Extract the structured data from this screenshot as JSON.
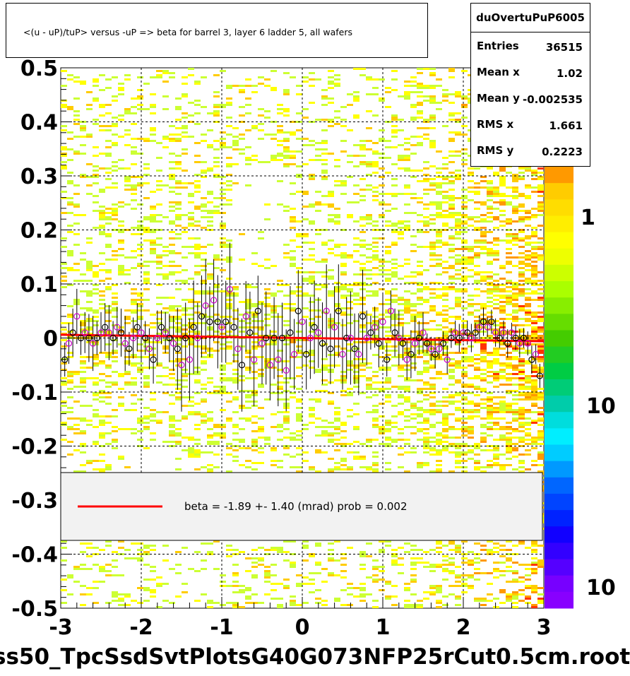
{
  "title": "<(u - uP)/tuP> versus  -uP => beta for barrel 3, layer 6 ladder 5, all wafers",
  "stats": {
    "name": "duOvertuPuP6005",
    "rows": [
      {
        "key": "Entries",
        "value": "36515"
      },
      {
        "key": "Mean x",
        "value": "1.02"
      },
      {
        "key": "Mean y",
        "value": "-0.002535"
      },
      {
        "key": "RMS x",
        "value": "1.661"
      },
      {
        "key": "RMS y",
        "value": "0.2223"
      }
    ]
  },
  "legend": {
    "text": "beta =   -1.89 +-  1.40 (mrad) prob = 0.002",
    "line_color": "#ff0000"
  },
  "footer": "ss50_TpcSsdSvtPlotsG40G073NFP25rCut0.5cm.root",
  "colors": {
    "fit": "#ff0000",
    "marker_a": "#000000",
    "marker_b": "#cc00cc",
    "grid": "#000000"
  },
  "chart_data": {
    "type": "scatter",
    "xlim": [
      -3,
      3
    ],
    "ylim": [
      -0.5,
      0.5
    ],
    "x_ticks": [
      "-3",
      "-2",
      "-1",
      "0",
      "1",
      "2",
      "3"
    ],
    "y_ticks": [
      "-0.5",
      "-0.4",
      "-0.3",
      "-0.2",
      "-0.1",
      "0",
      "0.1",
      "0.2",
      "0.3",
      "0.4",
      "0.5"
    ],
    "grid": true,
    "colorbar_labels": [
      "1",
      "10",
      "10"
    ],
    "fit_line": {
      "x": [
        -3,
        3
      ],
      "y": [
        0.006,
        -0.006
      ]
    },
    "profile": {
      "x": [
        -2.95,
        -2.9,
        -2.85,
        -2.8,
        -2.75,
        -2.7,
        -2.65,
        -2.6,
        -2.55,
        -2.5,
        -2.45,
        -2.4,
        -2.35,
        -2.3,
        -2.25,
        -2.2,
        -2.15,
        -2.1,
        -2.05,
        -2.0,
        -1.95,
        -1.9,
        -1.85,
        -1.8,
        -1.75,
        -1.7,
        -1.65,
        -1.6,
        -1.55,
        -1.5,
        -1.45,
        -1.4,
        -1.35,
        -1.3,
        -1.25,
        -1.2,
        -1.15,
        -1.1,
        -1.05,
        -1.0,
        -0.95,
        -0.9,
        -0.85,
        -0.8,
        -0.75,
        -0.7,
        -0.65,
        -0.6,
        -0.55,
        -0.5,
        -0.45,
        -0.4,
        -0.35,
        -0.3,
        -0.25,
        -0.2,
        -0.15,
        -0.1,
        -0.05,
        0.0,
        0.05,
        0.1,
        0.15,
        0.2,
        0.25,
        0.3,
        0.35,
        0.4,
        0.45,
        0.5,
        0.55,
        0.6,
        0.65,
        0.7,
        0.75,
        0.8,
        0.85,
        0.9,
        0.95,
        1.0,
        1.05,
        1.1,
        1.15,
        1.2,
        1.25,
        1.3,
        1.35,
        1.4,
        1.45,
        1.5,
        1.55,
        1.6,
        1.65,
        1.7,
        1.75,
        1.8,
        1.85,
        1.9,
        1.95,
        2.0,
        2.05,
        2.1,
        2.15,
        2.2,
        2.25,
        2.3,
        2.35,
        2.4,
        2.45,
        2.5,
        2.55,
        2.6,
        2.65,
        2.7,
        2.75,
        2.8,
        2.85,
        2.9,
        2.95
      ],
      "y": [
        -0.04,
        -0.01,
        0.01,
        0.04,
        0.0,
        0.01,
        0.0,
        -0.01,
        0.0,
        0.01,
        0.02,
        0.01,
        0.0,
        0.02,
        0.01,
        -0.01,
        -0.02,
        0.0,
        0.02,
        0.01,
        0.0,
        -0.02,
        -0.04,
        0.0,
        0.02,
        0.01,
        0.0,
        -0.01,
        -0.02,
        -0.05,
        0.0,
        -0.04,
        0.02,
        0.0,
        0.04,
        0.06,
        0.03,
        0.07,
        0.03,
        0.02,
        0.03,
        0.09,
        0.02,
        -0.02,
        -0.05,
        0.04,
        0.01,
        -0.04,
        0.05,
        -0.01,
        0.0,
        -0.05,
        0.0,
        -0.04,
        0.0,
        -0.06,
        0.01,
        -0.03,
        0.05,
        0.03,
        -0.03,
        0.0,
        0.02,
        0.01,
        -0.01,
        0.05,
        -0.02,
        0.02,
        0.05,
        -0.03,
        0.0,
        0.0,
        -0.02,
        -0.03,
        0.04,
        0.0,
        0.01,
        0.02,
        -0.01,
        0.03,
        -0.04,
        0.05,
        0.01,
        0.0,
        -0.01,
        -0.04,
        -0.03,
        -0.01,
        0.0,
        0.01,
        -0.01,
        -0.02,
        -0.03,
        -0.02,
        -0.01,
        -0.04,
        0.0,
        0.01,
        0.0,
        0.01,
        0.01,
        0.0,
        0.01,
        0.02,
        0.03,
        0.02,
        0.03,
        0.01,
        0.0,
        0.01,
        -0.01,
        0.01,
        0.0,
        -0.01,
        0.0,
        -0.01,
        -0.04,
        -0.03,
        -0.07
      ]
    }
  }
}
